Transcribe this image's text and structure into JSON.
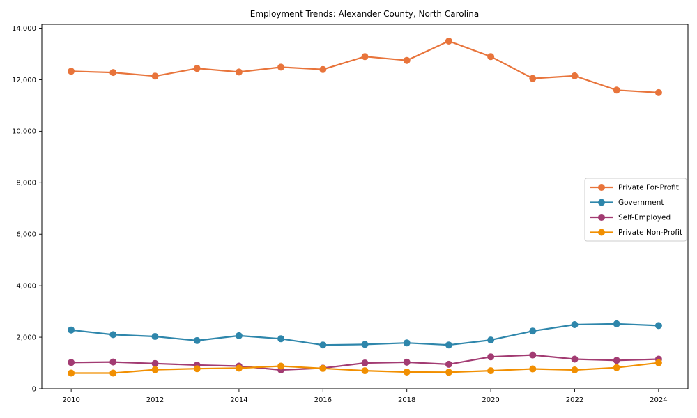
{
  "figure": {
    "title": "Employment Trends: Alexander County, North Carolina"
  },
  "chart_data": {
    "type": "line",
    "title": "Employment Trends: Alexander County, North Carolina",
    "xlabel": "",
    "ylabel": "",
    "x": [
      2010,
      2011,
      2012,
      2013,
      2014,
      2015,
      2016,
      2017,
      2018,
      2019,
      2020,
      2021,
      2022,
      2023,
      2024
    ],
    "xticks": [
      2010,
      2012,
      2014,
      2016,
      2018,
      2020,
      2022,
      2024
    ],
    "yticks": [
      0,
      2000,
      4000,
      6000,
      8000,
      10000,
      12000,
      14000
    ],
    "xlim": [
      2009.3,
      2024.7
    ],
    "ylim": [
      0,
      14150
    ],
    "grid": false,
    "legend_position": "center right",
    "series": [
      {
        "name": "Private For-Profit",
        "color": "#E8743B",
        "values": [
          12330,
          12280,
          12140,
          12440,
          12300,
          12490,
          12400,
          12900,
          12750,
          13500,
          12900,
          12050,
          12150,
          11600,
          11500
        ]
      },
      {
        "name": "Government",
        "color": "#2E86AB",
        "values": [
          2280,
          2100,
          2030,
          1870,
          2060,
          1940,
          1700,
          1720,
          1780,
          1700,
          1890,
          2240,
          2490,
          2520,
          2450
        ]
      },
      {
        "name": "Self-Employed",
        "color": "#A23B72",
        "values": [
          1020,
          1040,
          980,
          920,
          880,
          730,
          800,
          1000,
          1030,
          950,
          1240,
          1310,
          1150,
          1100,
          1150
        ]
      },
      {
        "name": "Private Non-Profit",
        "color": "#F18F01",
        "values": [
          610,
          610,
          740,
          780,
          800,
          880,
          790,
          700,
          650,
          640,
          700,
          770,
          730,
          820,
          1010
        ]
      }
    ]
  }
}
